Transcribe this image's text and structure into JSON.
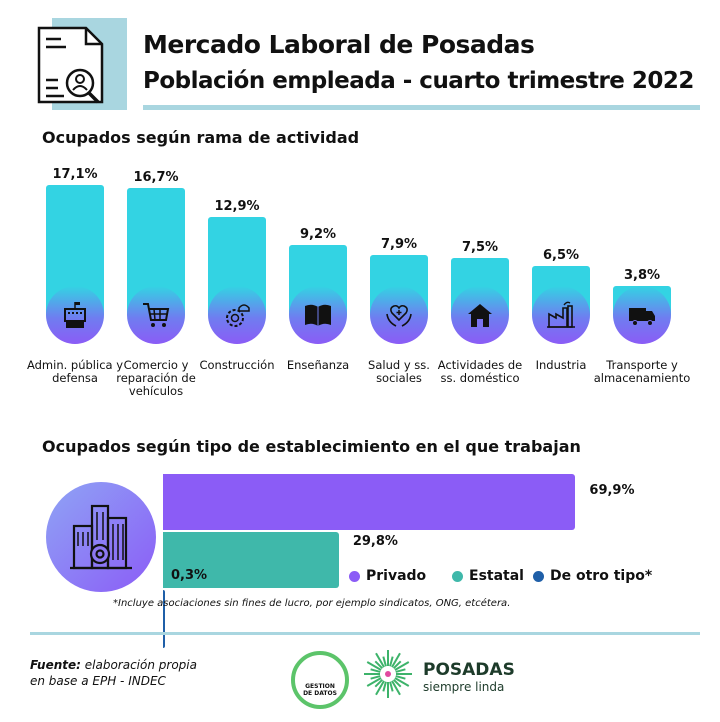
{
  "header": {
    "title": "Mercado Laboral de Posadas",
    "subtitle": "Población empleada - cuarto trimestre 2022",
    "icon": "document-search-icon"
  },
  "colors": {
    "cyan": "#33d3e3",
    "purple": "#8b5cf6",
    "teal": "#3fb8aa",
    "blue": "#1f5fa8",
    "rule": "#a9d6e0"
  },
  "chart_data": [
    {
      "type": "bar",
      "title": "Ocupados según rama de actividad",
      "unit": "%",
      "categories": [
        "Admin. pública y defensa",
        "Comercio y reparación de vehículos",
        "Construcción",
        "Enseñanza",
        "Salud y ss. sociales",
        "Actividades de ss. doméstico",
        "Industria",
        "Transporte y almacenamiento"
      ],
      "values": [
        17.1,
        16.7,
        12.9,
        9.2,
        7.9,
        7.5,
        6.5,
        3.8
      ],
      "value_labels": [
        "17,1%",
        "16,7%",
        "12,9%",
        "9,2%",
        "7,9%",
        "7,5%",
        "6,5%",
        "3,8%"
      ],
      "icons": [
        "government-building-icon",
        "shopping-cart-icon",
        "gear-helmet-icon",
        "book-icon",
        "heart-hands-icon",
        "house-icon",
        "factory-icon",
        "truck-icon"
      ]
    },
    {
      "type": "bar",
      "orientation": "horizontal",
      "title": "Ocupados según tipo de establecimiento en el que trabajan",
      "unit": "%",
      "categories": [
        "Privado",
        "Estatal",
        "De otro tipo*"
      ],
      "values": [
        69.9,
        29.8,
        0.3
      ],
      "value_labels": [
        "69,9%",
        "29,8%",
        "0,3%"
      ],
      "legend": "bottom-right",
      "note": "*Incluye asociaciones sin fines de lucro, por ejemplo sindicatos, ONG, etcétera."
    }
  ],
  "footer": {
    "source_label": "Fuente:",
    "source_text": " elaboración propia en base a EPH - INDEC",
    "logo1_text": "GESTION DE DATOS",
    "logo2_name": "POSADAS",
    "logo2_tagline": "siempre linda"
  }
}
